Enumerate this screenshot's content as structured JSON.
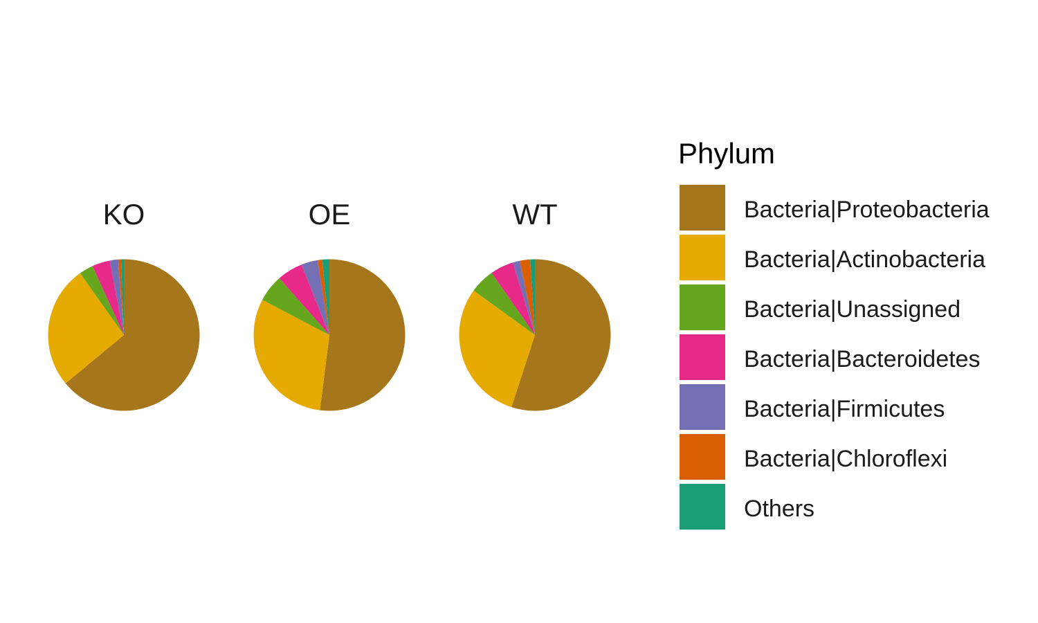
{
  "chart_data": {
    "type": "pie",
    "legend": {
      "title": "Phylum",
      "position": "right",
      "entries": [
        {
          "label": "Bacteria|Proteobacteria",
          "color": "#A6761D"
        },
        {
          "label": "Bacteria|Actinobacteria",
          "color": "#E6AB02"
        },
        {
          "label": "Bacteria|Unassigned",
          "color": "#66A61E"
        },
        {
          "label": "Bacteria|Bacteroidetes",
          "color": "#E7298A"
        },
        {
          "label": "Bacteria|Firmicutes",
          "color": "#7570B3"
        },
        {
          "label": "Bacteria|Chloroflexi",
          "color": "#D95F02"
        },
        {
          "label": "Others",
          "color": "#1B9E77"
        }
      ]
    },
    "categories": [
      "Bacteria|Proteobacteria",
      "Bacteria|Actinobacteria",
      "Bacteria|Unassigned",
      "Bacteria|Bacteroidetes",
      "Bacteria|Firmicutes",
      "Bacteria|Chloroflexi",
      "Others"
    ],
    "panels": [
      {
        "title": "KO",
        "values": [
          0.64,
          0.262,
          0.03,
          0.038,
          0.018,
          0.006,
          0.006
        ]
      },
      {
        "title": "OE",
        "values": [
          0.52,
          0.307,
          0.058,
          0.055,
          0.035,
          0.01,
          0.015
        ]
      },
      {
        "title": "WT",
        "values": [
          0.55,
          0.3,
          0.053,
          0.05,
          0.015,
          0.022,
          0.01
        ]
      }
    ]
  }
}
